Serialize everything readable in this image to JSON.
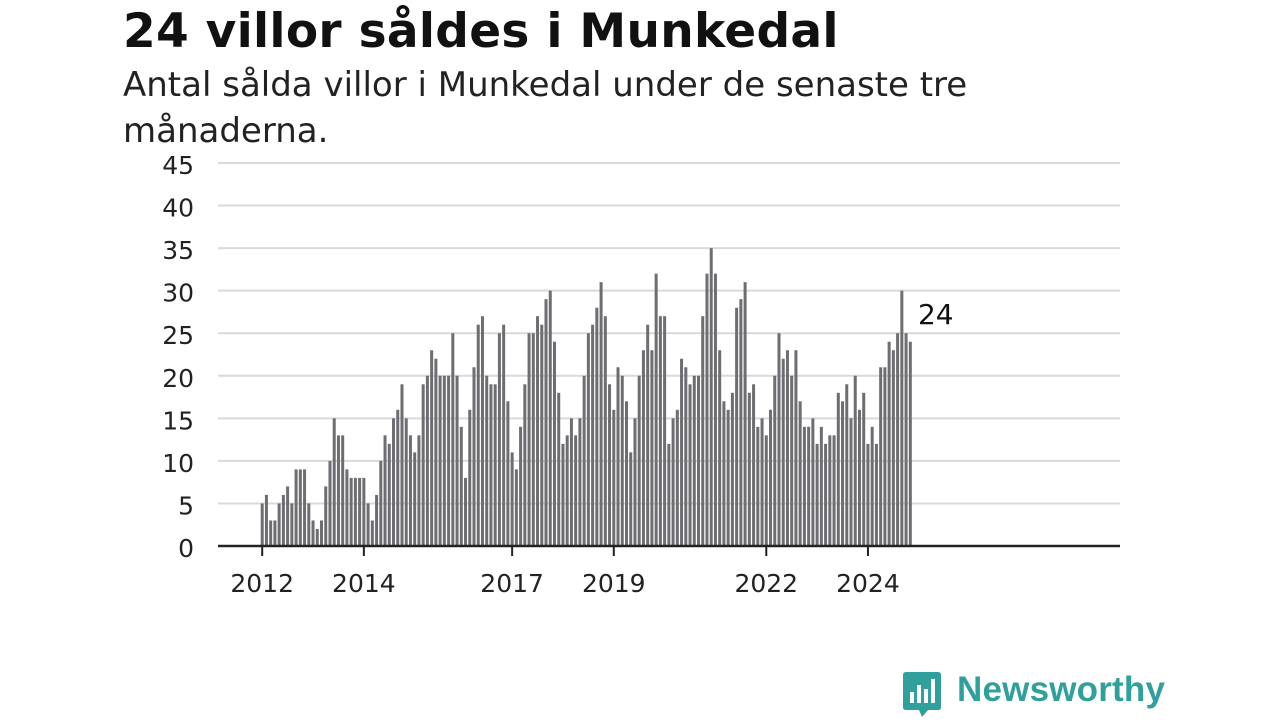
{
  "title": "24 villor såldes i Munkedal",
  "subtitle": "Antal sålda villor i Munkedal under de senaste tre månaderna.",
  "brand": {
    "name": "Newsworthy",
    "color": "#2fa09b",
    "icon": "newsworthy-chart-bubble-icon"
  },
  "colors": {
    "bar": "#6d6d72",
    "highlight": "#2fa09b",
    "grid": "#d9d9d9",
    "axis": "#222222"
  },
  "chart_data": {
    "type": "bar",
    "title": "24 villor såldes i Munkedal",
    "subtitle": "Antal sålda villor i Munkedal under de senaste tre månaderna.",
    "xlabel": "",
    "ylabel": "",
    "ylim": [
      0,
      45
    ],
    "yticks": [
      0,
      5,
      10,
      15,
      20,
      25,
      30,
      35,
      40,
      45
    ],
    "grid": true,
    "x_start": "2012-01",
    "x_end": "2024-12",
    "xtick_labels": [
      {
        "label": "2012",
        "month": "2012-01"
      },
      {
        "label": "2014",
        "month": "2014-01"
      },
      {
        "label": "2017",
        "month": "2016-12"
      },
      {
        "label": "2019",
        "month": "2018-12"
      },
      {
        "label": "2022",
        "month": "2021-12"
      },
      {
        "label": "2024",
        "month": "2023-12"
      }
    ],
    "values": [
      5,
      6,
      3,
      3,
      5,
      6,
      7,
      5,
      9,
      9,
      9,
      5,
      3,
      2,
      3,
      7,
      10,
      15,
      13,
      13,
      9,
      8,
      8,
      8,
      8,
      5,
      3,
      6,
      10,
      13,
      12,
      15,
      16,
      19,
      15,
      13,
      11,
      13,
      19,
      20,
      23,
      22,
      20,
      20,
      20,
      25,
      20,
      14,
      8,
      16,
      21,
      26,
      27,
      20,
      19,
      19,
      25,
      26,
      17,
      11,
      9,
      14,
      19,
      25,
      25,
      27,
      26,
      29,
      30,
      24,
      18,
      12,
      13,
      15,
      13,
      15,
      20,
      25,
      26,
      28,
      31,
      27,
      19,
      16,
      21,
      20,
      17,
      11,
      15,
      20,
      23,
      26,
      23,
      32,
      27,
      27,
      12,
      15,
      16,
      22,
      21,
      19,
      20,
      20,
      27,
      32,
      35,
      32,
      23,
      17,
      16,
      18,
      28,
      29,
      31,
      18,
      19,
      14,
      15,
      13,
      16,
      20,
      25,
      22,
      23,
      20,
      23,
      17,
      14,
      14,
      15,
      12,
      14,
      12,
      13,
      13,
      18,
      17,
      19,
      15,
      20,
      16,
      18,
      12,
      14,
      12,
      21,
      21,
      24,
      23,
      25,
      30,
      25,
      24
    ],
    "highlight": {
      "label": "24",
      "value": 24,
      "month": "2024-12"
    }
  }
}
